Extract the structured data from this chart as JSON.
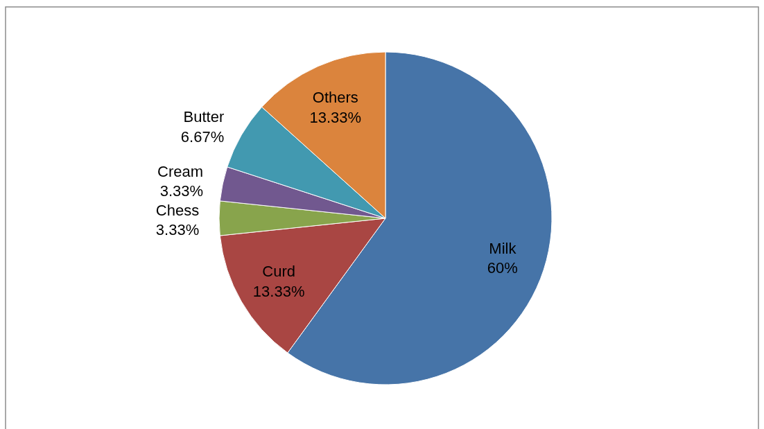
{
  "chart_data": {
    "type": "pie",
    "categories": [
      "Milk",
      "Curd",
      "Chess",
      "Cream",
      "Butter",
      "Others"
    ],
    "values": [
      60,
      13.33,
      3.33,
      3.33,
      6.67,
      13.33
    ],
    "value_labels": [
      "60%",
      "13.33%",
      "3.33%",
      "3.33%",
      "6.67%",
      "13.33%"
    ],
    "colors": [
      "#4674a8",
      "#a94643",
      "#88a44c",
      "#71588f",
      "#4299b0",
      "#db843d"
    ]
  }
}
